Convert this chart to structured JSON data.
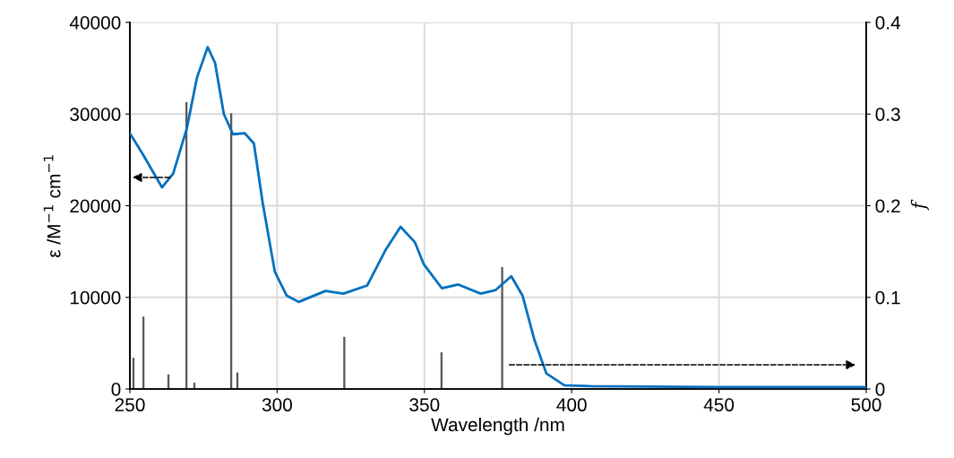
{
  "chart_data": {
    "type": "line",
    "xlabel": "Wavelength /nm",
    "ylabel": "ε /M$^{−1}$ cm$^{−1}$",
    "y2label": "f",
    "xlim": [
      250,
      500
    ],
    "xticks": [
      250,
      300,
      350,
      400,
      450,
      500
    ],
    "ylim": [
      0,
      40000
    ],
    "yticks": [
      0,
      10000,
      20000,
      30000,
      40000
    ],
    "y2lim": [
      0,
      0.4
    ],
    "y2ticks": [
      0,
      0.1,
      0.2,
      0.3,
      0.4
    ],
    "grid": true,
    "legend": false,
    "series": [
      {
        "color": "#0070c0",
        "axis": "y",
        "x": [
          250,
          254.6,
          260.9,
          264.7,
          269.3,
          272.8,
          276.4,
          278.9,
          281.9,
          285,
          289,
          292.1,
          295.1,
          299.2,
          303.2,
          307.3,
          316.4,
          322.5,
          330.6,
          336.7,
          341.9,
          346.8,
          349.8,
          355.9,
          361.5,
          369.1,
          374.2,
          379.5,
          383.3,
          387.4,
          391.4,
          397.5,
          406.6,
          450,
          500
        ],
        "values": [
          27900,
          25500,
          22000,
          23500,
          28400,
          34000,
          37300,
          35600,
          30000,
          27800,
          27900,
          26800,
          20300,
          12800,
          10200,
          9500,
          10700,
          10400,
          11300,
          15100,
          17700,
          16000,
          13600,
          11000,
          11400,
          10400,
          10800,
          12300,
          10200,
          5300,
          1700,
          400,
          300,
          200,
          200
        ]
      },
      {
        "type": "bar",
        "color": "#595959",
        "axis": "y2",
        "x": [
          251.2,
          254.6,
          263.1,
          269.2,
          271.9,
          284.4,
          286.5,
          322.8,
          355.8,
          376.4
        ],
        "values": [
          0.034,
          0.079,
          0.016,
          0.313,
          0.007,
          0.301,
          0.018,
          0.057,
          0.04,
          0.133
        ]
      }
    ]
  }
}
